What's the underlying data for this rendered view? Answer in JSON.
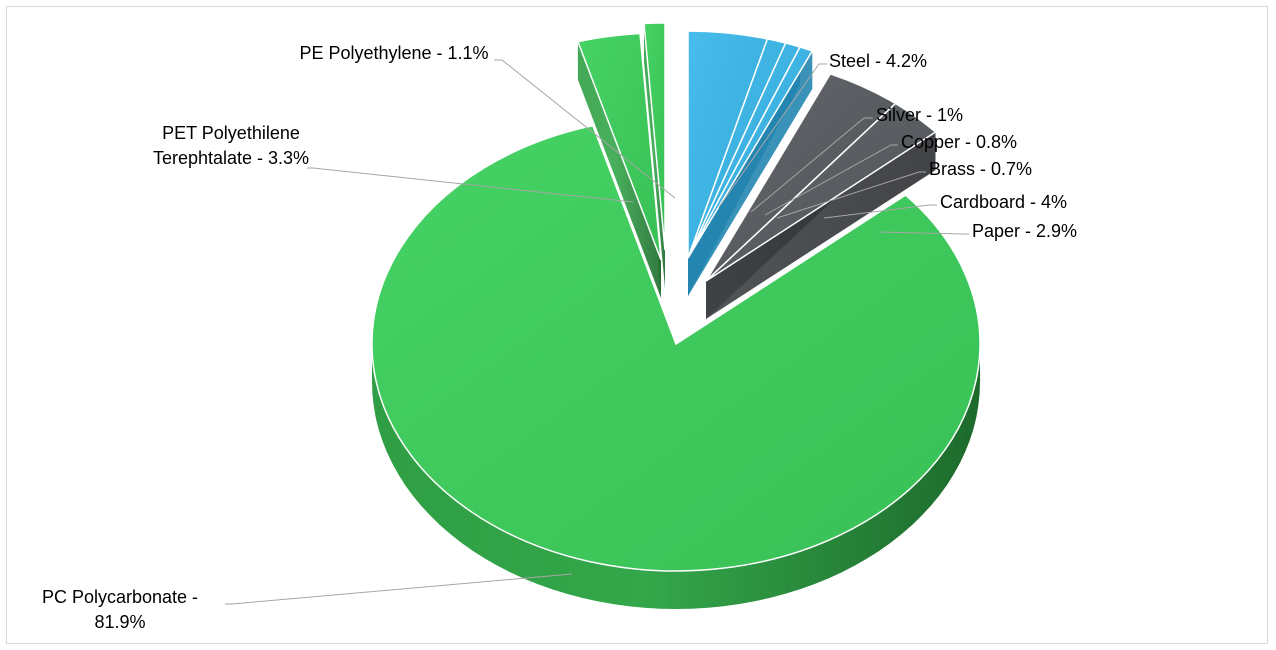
{
  "chart_data": {
    "type": "pie",
    "style": "3d-exploded",
    "title": "",
    "legend": "none",
    "slices": [
      {
        "label": "Steel - 4.2%",
        "name": "Steel",
        "value": 4.2,
        "color": "#3cb4e5"
      },
      {
        "label": "Silver - 1%",
        "name": "Silver",
        "value": 1.0,
        "color": "#3cb4e5"
      },
      {
        "label": "Copper - 0.8%",
        "name": "Copper",
        "value": 0.8,
        "color": "#3cb4e5"
      },
      {
        "label": "Brass - 0.7%",
        "name": "Brass",
        "value": 0.7,
        "color": "#3cb4e5"
      },
      {
        "label": "Cardboard - 4%",
        "name": "Cardboard",
        "value": 4.0,
        "color": "#595c61"
      },
      {
        "label": "Paper - 2.9%",
        "name": "Paper",
        "value": 2.9,
        "color": "#595c61"
      },
      {
        "label": "PC Polycarbonate - 81.9%",
        "name": "PC Polycarbonate",
        "value": 81.9,
        "color": "#3cc95a"
      },
      {
        "label": "PET Polyethilene Terephtalate - 3.3%",
        "name": "PET Polyethilene Terephtalate",
        "value": 3.3,
        "color": "#3cc95a"
      },
      {
        "label": "PE Polyethylene - 1.1%",
        "name": "PE Polyethylene",
        "value": 1.1,
        "color": "#3cc95a"
      }
    ]
  }
}
